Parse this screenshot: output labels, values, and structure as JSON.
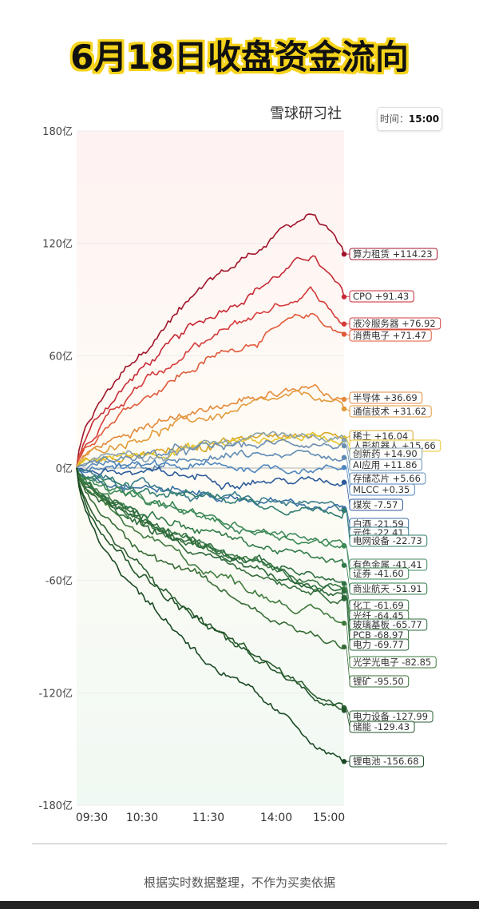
{
  "header": {
    "title": "6月18日收盘资金流向",
    "brand": "雪球研习社",
    "time_label": "时间：",
    "time_value": "15:00"
  },
  "footer": {
    "note": "根据实时数据整理，不作为买卖依据"
  },
  "chart_data": {
    "type": "line",
    "x_ticks": [
      "09:30",
      "10:30",
      "11:30",
      "14:00",
      "15:00"
    ],
    "y_ticks": [
      "180亿",
      "120亿",
      "60亿",
      "0亿",
      "-60亿",
      "-120亿",
      "-180亿"
    ],
    "ylim": [
      -180,
      180
    ],
    "unit": "亿",
    "series": [
      {
        "name": "算力租赁",
        "value": "+114.23",
        "final": 114.23,
        "color": "#a0142a"
      },
      {
        "name": "CPO",
        "value": "+91.43",
        "final": 91.43,
        "color": "#c62a35"
      },
      {
        "name": "液冷服务器",
        "value": "+76.92",
        "final": 76.92,
        "color": "#d53b3b"
      },
      {
        "name": "消费电子",
        "value": "+71.47",
        "final": 71.47,
        "color": "#e05a3a"
      },
      {
        "name": "半导体",
        "value": "+36.69",
        "final": 36.69,
        "color": "#e58a3c"
      },
      {
        "name": "通信技术",
        "value": "+31.62",
        "final": 31.62,
        "color": "#e39a3a"
      },
      {
        "name": "稀土",
        "value": "+16.04",
        "final": 16.04,
        "color": "#d8a520"
      },
      {
        "name": "人形机器人",
        "value": "+15.66",
        "final": 15.66,
        "color": "#e6c52a"
      },
      {
        "name": "创新药",
        "value": "+14.90",
        "final": 14.9,
        "color": "#8aa3ad"
      },
      {
        "name": "AI应用",
        "value": "+11.86",
        "final": 11.86,
        "color": "#6b8fb0"
      },
      {
        "name": "存储芯片",
        "value": "+5.66",
        "final": 5.66,
        "color": "#5d8bb5"
      },
      {
        "name": "MLCC",
        "value": "+0.35",
        "final": 0.35,
        "color": "#4f87bf"
      },
      {
        "name": "煤炭",
        "value": "-7.57",
        "final": -7.57,
        "color": "#2c5a9a"
      },
      {
        "name": "白酒",
        "value": "-21.59",
        "final": -21.59,
        "color": "#3a6fa6"
      },
      {
        "name": "元件",
        "value": "-22.41",
        "final": -22.41,
        "color": "#3a7d8e"
      },
      {
        "name": "电网设备",
        "value": "-22.73",
        "final": -22.73,
        "color": "#2f7d6f"
      },
      {
        "name": "有色金属",
        "value": "-41.41",
        "final": -41.41,
        "color": "#3f8a5e"
      },
      {
        "name": "证券",
        "value": "-41.60",
        "final": -41.6,
        "color": "#3b8a55"
      },
      {
        "name": "商业航天",
        "value": "-51.91",
        "final": -51.91,
        "color": "#2f7a48"
      },
      {
        "name": "化工",
        "value": "-61.69",
        "final": -61.69,
        "color": "#2e7040"
      },
      {
        "name": "光纤",
        "value": "-64.45",
        "final": -64.45,
        "color": "#3b7a45"
      },
      {
        "name": "玻璃基板",
        "value": "-65.77",
        "final": -65.77,
        "color": "#2d6e3e"
      },
      {
        "name": "PCB",
        "value": "-68.97",
        "final": -68.97,
        "color": "#356f3d"
      },
      {
        "name": "电力",
        "value": "-69.77",
        "final": -69.77,
        "color": "#2a6638"
      },
      {
        "name": "光学光电子",
        "value": "-82.85",
        "final": -82.85,
        "color": "#3e7a3c"
      },
      {
        "name": "锂矿",
        "value": "-95.50",
        "final": -95.5,
        "color": "#356b34"
      },
      {
        "name": "电力设备",
        "value": "-127.99",
        "final": -127.99,
        "color": "#2a5f30"
      },
      {
        "name": "储能",
        "value": "-129.43",
        "final": -129.43,
        "color": "#22552a"
      },
      {
        "name": "锂电池",
        "value": "-156.68",
        "final": -156.68,
        "color": "#1a4a25"
      }
    ]
  }
}
